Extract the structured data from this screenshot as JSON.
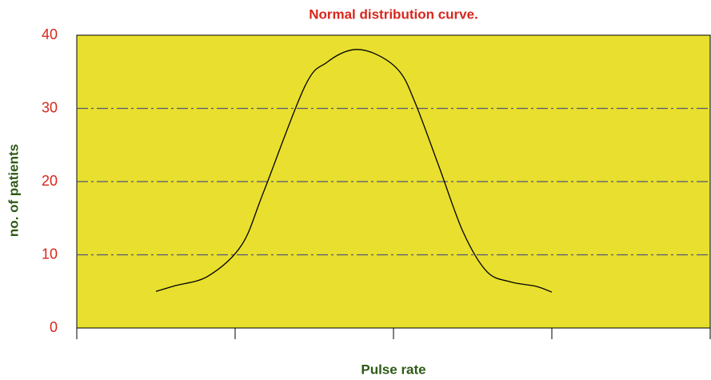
{
  "chart_data": {
    "type": "line",
    "title": "Normal distribution curve.",
    "x_label": "Pulse rate",
    "y_label": "no. of patients",
    "x": [
      0.5,
      0.625,
      0.83,
      1.04,
      1.18,
      1.44,
      1.58,
      1.74,
      1.89,
      2.04,
      2.14,
      2.29,
      2.44,
      2.59,
      2.74,
      2.9,
      3.0
    ],
    "values": [
      5,
      5.8,
      7.1,
      11.3,
      18.6,
      33,
      36.3,
      38,
      37.4,
      35,
      30.6,
      21.9,
      13.1,
      7.7,
      6.3,
      5.7,
      4.9
    ],
    "color": "#000000",
    "background": "#e8df2e",
    "xlim": [
      0,
      4
    ],
    "xticks": [
      0,
      1,
      2,
      3,
      4
    ],
    "ylim": [
      0,
      40
    ],
    "yticks": [
      0,
      10,
      20,
      30,
      40
    ],
    "grid": true
  }
}
